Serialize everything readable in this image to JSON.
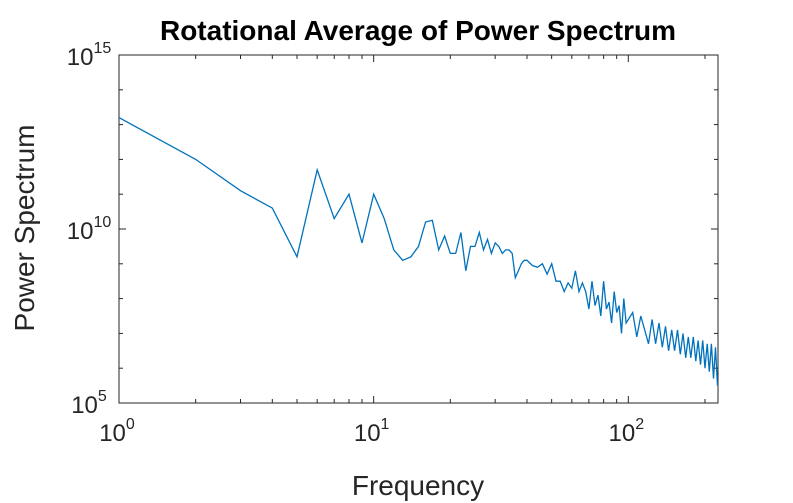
{
  "chart_data": {
    "type": "line",
    "title": "Rotational Average of Power Spectrum",
    "xlabel": "Frequency",
    "ylabel": "Power Spectrum",
    "xscale": "log",
    "yscale": "log",
    "xlim": [
      1,
      225
    ],
    "ylim": [
      100000,
      1000000000000000
    ],
    "x_ticks": [
      {
        "base": "10",
        "exp": "0",
        "value": 1
      },
      {
        "base": "10",
        "exp": "1",
        "value": 10
      },
      {
        "base": "10",
        "exp": "2",
        "value": 100
      }
    ],
    "y_ticks": [
      {
        "base": "10",
        "exp": "5",
        "value": 100000
      },
      {
        "base": "10",
        "exp": "10",
        "value": 10000000000
      },
      {
        "base": "10",
        "exp": "15",
        "value": 1000000000000000
      }
    ],
    "grid": false,
    "line_color": "#0072BD",
    "series": [
      {
        "x": [
          1,
          2,
          3,
          4,
          5,
          6,
          7,
          8,
          9,
          10,
          11,
          12,
          13,
          14,
          15,
          16,
          17,
          18,
          19,
          20,
          21,
          22,
          23,
          24,
          25,
          26,
          27,
          28,
          29,
          30,
          31,
          32,
          33,
          34,
          35,
          36,
          37,
          38,
          39,
          40,
          42,
          44,
          46,
          48,
          50,
          52,
          54,
          56,
          58,
          60,
          62,
          64,
          66,
          68,
          70,
          72,
          74,
          76,
          78,
          80,
          82,
          84,
          86,
          88,
          90,
          92,
          94,
          96,
          98,
          100,
          104,
          108,
          112,
          116,
          120,
          124,
          128,
          132,
          136,
          140,
          144,
          148,
          152,
          156,
          160,
          164,
          168,
          172,
          176,
          180,
          184,
          188,
          192,
          196,
          200,
          204,
          208,
          212,
          216,
          220,
          224
        ],
        "log10_y": [
          13.2,
          12.0,
          11.1,
          10.6,
          9.2,
          11.7,
          10.3,
          11.0,
          9.6,
          11.0,
          10.3,
          9.4,
          9.1,
          9.2,
          9.5,
          10.2,
          10.25,
          9.4,
          9.8,
          9.3,
          9.3,
          9.9,
          8.8,
          9.5,
          9.5,
          9.9,
          9.4,
          9.7,
          9.3,
          9.6,
          9.5,
          9.3,
          9.4,
          9.4,
          9.3,
          8.6,
          8.8,
          9.0,
          9.1,
          9.1,
          8.95,
          8.9,
          9.0,
          8.7,
          9.0,
          8.5,
          8.5,
          8.2,
          8.45,
          8.3,
          8.8,
          8.2,
          8.45,
          8.2,
          7.7,
          8.5,
          7.8,
          8.1,
          7.5,
          8.5,
          7.7,
          7.9,
          7.3,
          8.2,
          7.6,
          7.8,
          7.0,
          8.0,
          7.3,
          7.4,
          7.6,
          6.9,
          7.5,
          7.1,
          6.7,
          7.4,
          6.7,
          7.3,
          6.6,
          7.2,
          6.5,
          7.1,
          6.5,
          7.1,
          6.4,
          7.0,
          6.3,
          6.9,
          6.3,
          6.9,
          6.2,
          6.8,
          6.1,
          6.8,
          6.0,
          6.7,
          5.9,
          6.7,
          5.7,
          6.6,
          5.5
        ]
      }
    ]
  }
}
